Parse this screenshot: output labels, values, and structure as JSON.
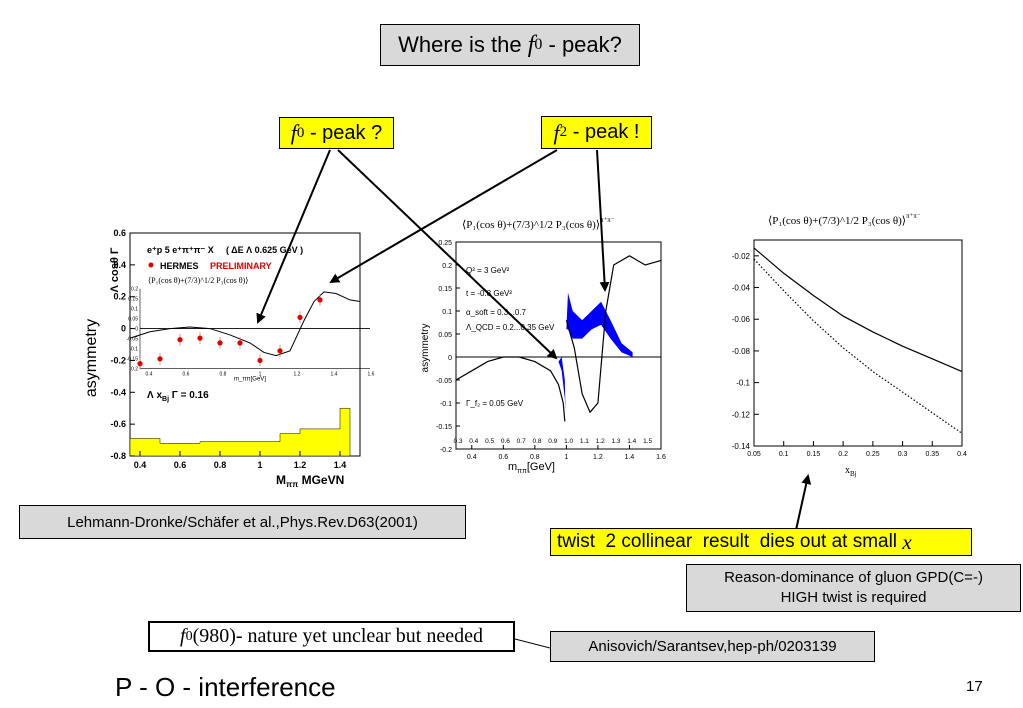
{
  "slide": {
    "title": {
      "pre": "Where is the ",
      "sym": "f",
      "sub": "0",
      "post": " - peak?"
    },
    "label_f0": {
      "sym": "f",
      "sub": "0",
      "text": " - peak ?"
    },
    "label_f2": {
      "sym": "f",
      "sub": "2",
      "text": " - peak !"
    },
    "reference_left": "Lehmann-Dronke/Schäfer et al.,Phys.Rev.D63(2001)",
    "twist_note": {
      "text": "twist  2 collinear  result  dies out at small ",
      "var": "x"
    },
    "reason": {
      "line1": "Reason-dominance of gluon GPD(C=-)",
      "line2": "HIGH twist is required"
    },
    "f0_note": {
      "sym": "f",
      "sub": "0",
      "text": "(980)- nature yet unclear but needed"
    },
    "reference_bottom": "Anisovich/Sarantsev,hep-ph/0203139",
    "footer_title": "P - O - interference",
    "page_number": "17"
  },
  "chart_data": [
    {
      "type": "scatter",
      "ylabel": "asymmetry",
      "yaxis_title": "Λ cosθ Γ",
      "xlabel": "M",
      "xlabel_sub": "ππ",
      "xlabel_unit": " MGeVN",
      "ylim": [
        -0.8,
        0.6
      ],
      "xlim": [
        0.35,
        1.5
      ],
      "yticks": [
        "0.6",
        "0.4",
        "0.2",
        "0",
        "-0.2",
        "-0.4",
        "-0.6",
        "-0.8"
      ],
      "xticks": [
        "0.4",
        "0.6",
        "0.8",
        "1",
        "1.2",
        "1.4"
      ],
      "legend": {
        "reaction": "e⁺p 5 e⁺π⁺π⁻ X",
        "cut": "( ΔE Λ 0.625 GeV )",
        "marker": "HERMES",
        "preliminary": "PRELIMINARY"
      },
      "inset_formula": "⟨P₁(cos θ)+(7/3)^1/2 P₃(cos θ)⟩",
      "inset_xlabel": "m_ππ[GeV]",
      "inset_yticks": [
        "0.2",
        "0.15",
        "0.1",
        "0.05",
        "0",
        "-0.05",
        "-0.1",
        "-0.15",
        "-0.2"
      ],
      "inset_xticks": [
        "0.4",
        "0.6",
        "0.8",
        "1",
        "1.2",
        "1.4",
        "1.6"
      ],
      "systematics_label": "Λ x",
      "systematics_label_sub": "Bj",
      "systematics_label_tail": " Γ = 0.16",
      "points": [
        {
          "x": 0.4,
          "y": -0.22
        },
        {
          "x": 0.5,
          "y": -0.19
        },
        {
          "x": 0.6,
          "y": -0.07
        },
        {
          "x": 0.7,
          "y": -0.06
        },
        {
          "x": 0.8,
          "y": -0.09
        },
        {
          "x": 0.9,
          "y": -0.09
        },
        {
          "x": 1.0,
          "y": -0.2
        },
        {
          "x": 1.1,
          "y": -0.14
        },
        {
          "x": 1.2,
          "y": 0.07
        },
        {
          "x": 1.3,
          "y": 0.18
        }
      ],
      "systematic_band": {
        "x": [
          0.35,
          0.5,
          0.7,
          0.9,
          1.1,
          1.2,
          1.3,
          1.4
        ],
        "top": [
          -0.69,
          -0.72,
          -0.71,
          -0.71,
          -0.66,
          -0.63,
          -0.63,
          -0.5
        ]
      }
    },
    {
      "type": "line",
      "title": "⟨P₁(cos θ)+(7/3)^1/2 P₃(cos θ)⟩",
      "title_sup": "π⁺π⁻",
      "ylabel": "asymmetry",
      "xlabel": "m",
      "xlabel_sub": "ππ",
      "xlabel_unit": "[GeV]",
      "xlim": [
        0.3,
        1.6
      ],
      "ylim": [
        -0.2,
        0.25
      ],
      "yticks": [
        "0.25",
        "0.2",
        "0.15",
        "0.1",
        "0.05",
        "0",
        "-0.05",
        "-0.1",
        "-0.15",
        "-0.2"
      ],
      "xticks": [
        "0.4",
        "0.6",
        "0.8",
        "1",
        "1.2",
        "1.4",
        "1.6"
      ],
      "inner_xticks": [
        "0.3",
        "0.4",
        "0.5",
        "0.6",
        "0.7",
        "0.8",
        "0.9",
        "1.0",
        "1.1",
        "1.2",
        "1.3",
        "1.4",
        "1.5"
      ],
      "annotations": [
        "Q² = 3 GeV²",
        "t = -0.8 GeV²",
        "α_soft = 0.3...0.7",
        "Λ_QCD = 0.2...0.35 GeV",
        "Γ_f₂ = 0.05 GeV"
      ],
      "series": [
        {
          "x": [
            0.3,
            0.4,
            0.5,
            0.6,
            0.7,
            0.8,
            0.9,
            0.95,
            0.98,
            0.99
          ],
          "y": [
            -0.05,
            -0.03,
            -0.01,
            0.0,
            0.0,
            -0.01,
            -0.03,
            -0.06,
            -0.1,
            -0.14
          ]
        },
        {
          "x": [
            1.0,
            1.05,
            1.1,
            1.15,
            1.2,
            1.25,
            1.3,
            1.4,
            1.5,
            1.6
          ],
          "y": [
            0.08,
            0.02,
            -0.08,
            -0.12,
            -0.1,
            0.1,
            0.2,
            0.22,
            0.2,
            0.21
          ]
        }
      ]
    },
    {
      "type": "line",
      "title": "⟨P₁(cos θ)+(7/3)^1/2 P₃(cos θ)⟩",
      "title_sup": "π⁺π⁻",
      "xlabel": "x",
      "xlabel_sub": "Bj",
      "xlim": [
        0.05,
        0.4
      ],
      "ylim": [
        -0.14,
        -0.01
      ],
      "yticks": [
        "-0.02",
        "-0.04",
        "-0.06",
        "-0.08",
        "-0.1",
        "-0.12",
        "-0.14"
      ],
      "xticks": [
        "0.05",
        "0.1",
        "0.15",
        "0.2",
        "0.25",
        "0.3",
        "0.35",
        "0.4"
      ],
      "series": [
        {
          "style": "solid",
          "x": [
            0.05,
            0.1,
            0.15,
            0.2,
            0.25,
            0.3,
            0.35,
            0.4
          ],
          "y": [
            -0.015,
            -0.031,
            -0.045,
            -0.058,
            -0.068,
            -0.077,
            -0.085,
            -0.093
          ]
        },
        {
          "style": "dotted",
          "x": [
            0.05,
            0.1,
            0.15,
            0.2,
            0.25,
            0.3,
            0.35,
            0.4
          ],
          "y": [
            -0.022,
            -0.042,
            -0.061,
            -0.078,
            -0.093,
            -0.106,
            -0.119,
            -0.132
          ]
        }
      ]
    }
  ]
}
